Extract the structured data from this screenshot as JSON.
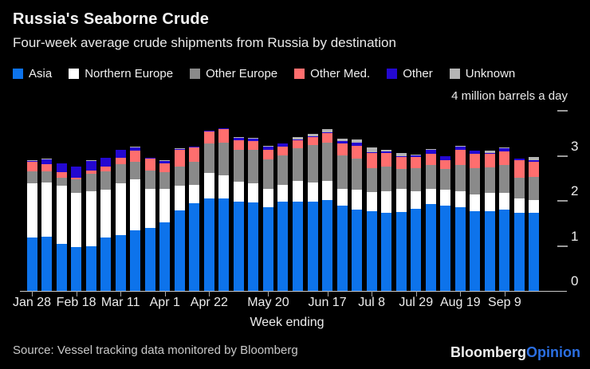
{
  "header": {
    "title": "Russia's Seaborne Crude",
    "subtitle": "Four-week average crude shipments from Russia by destination"
  },
  "footer": {
    "source": "Source: Vessel tracking data monitored by Bloomberg",
    "logo_part1": "Bloomberg",
    "logo_part2": "Opinion"
  },
  "chart_data": {
    "type": "bar",
    "stacked": true,
    "title": "Russia's Seaborne Crude",
    "subtitle": "Four-week average crude shipments from Russia by destination",
    "unit_label": "4 million barrels a day",
    "xlabel": "Week ending",
    "ylabel": "million barrels a day",
    "ylim": [
      0,
      4
    ],
    "grid": false,
    "legend_position": "top",
    "y_ticks": [
      {
        "value": 4,
        "label": ""
      },
      {
        "value": 3,
        "label": "3"
      },
      {
        "value": 2,
        "label": "2"
      },
      {
        "value": 1,
        "label": "1"
      },
      {
        "value": 0,
        "label": "0"
      }
    ],
    "categories": [
      "Jan 28",
      "Feb 4",
      "Feb 11",
      "Feb 18",
      "Feb 25",
      "Mar 4",
      "Mar 11",
      "Mar 18",
      "Mar 25",
      "Apr 1",
      "Apr 8",
      "Apr 15",
      "Apr 22",
      "Apr 29",
      "May 6",
      "May 13",
      "May 20",
      "May 27",
      "Jun 3",
      "Jun 10",
      "Jun 17",
      "Jun 24",
      "Jul 1",
      "Jul 8",
      "Jul 15",
      "Jul 22",
      "Jul 29",
      "Aug 5",
      "Aug 12",
      "Aug 19",
      "Aug 26",
      "Sep 2",
      "Sep 9",
      "Sep 16",
      "Sep 23"
    ],
    "x_tick_labels": [
      {
        "label": "Jan 28",
        "index": 0
      },
      {
        "label": "Feb 18",
        "index": 3
      },
      {
        "label": "Mar 11",
        "index": 6
      },
      {
        "label": "Apr 1",
        "index": 9
      },
      {
        "label": "Apr 22",
        "index": 12
      },
      {
        "label": "May 20",
        "index": 16
      },
      {
        "label": "Jun 17",
        "index": 20
      },
      {
        "label": "Jul 8",
        "index": 23
      },
      {
        "label": "Jul 29",
        "index": 26
      },
      {
        "label": "Aug 19",
        "index": 29
      },
      {
        "label": "Sep 9",
        "index": 32
      }
    ],
    "series": [
      {
        "name": "Asia",
        "color": "#0d73eb",
        "values": [
          1.18,
          1.2,
          1.04,
          0.97,
          1.0,
          1.18,
          1.24,
          1.34,
          1.4,
          1.53,
          1.79,
          1.95,
          2.05,
          2.05,
          1.98,
          1.96,
          1.86,
          1.98,
          1.99,
          1.98,
          2.02,
          1.9,
          1.8,
          1.77,
          1.73,
          1.75,
          1.83,
          1.93,
          1.9,
          1.85,
          1.77,
          1.77,
          1.81,
          1.74,
          1.73
        ]
      },
      {
        "name": "Northern Europe",
        "color": "#ffffff",
        "values": [
          1.21,
          1.2,
          1.3,
          1.21,
          1.21,
          1.06,
          1.15,
          1.13,
          0.87,
          0.73,
          0.55,
          0.41,
          0.57,
          0.52,
          0.44,
          0.43,
          0.4,
          0.38,
          0.45,
          0.42,
          0.43,
          0.36,
          0.44,
          0.43,
          0.49,
          0.51,
          0.38,
          0.33,
          0.34,
          0.37,
          0.37,
          0.41,
          0.36,
          0.32,
          0.28
        ]
      },
      {
        "name": "Other Europe",
        "color": "#8a8a8a",
        "values": [
          0.26,
          0.25,
          0.17,
          0.3,
          0.4,
          0.41,
          0.43,
          0.39,
          0.41,
          0.38,
          0.43,
          0.51,
          0.65,
          0.72,
          0.71,
          0.74,
          0.66,
          0.65,
          0.73,
          0.84,
          0.84,
          0.75,
          0.69,
          0.53,
          0.54,
          0.45,
          0.52,
          0.53,
          0.46,
          0.57,
          0.59,
          0.56,
          0.62,
          0.46,
          0.53
        ]
      },
      {
        "name": "Other Med.",
        "color": "#ff6e6e",
        "values": [
          0.21,
          0.16,
          0.13,
          0.04,
          0.07,
          0.12,
          0.13,
          0.25,
          0.25,
          0.19,
          0.37,
          0.32,
          0.27,
          0.31,
          0.22,
          0.2,
          0.22,
          0.19,
          0.18,
          0.18,
          0.22,
          0.26,
          0.3,
          0.34,
          0.31,
          0.27,
          0.25,
          0.26,
          0.21,
          0.34,
          0.32,
          0.31,
          0.31,
          0.39,
          0.33
        ]
      },
      {
        "name": "Other",
        "color": "#2408d1",
        "values": [
          0.02,
          0.11,
          0.19,
          0.24,
          0.21,
          0.18,
          0.18,
          0.08,
          0.02,
          0.06,
          0.01,
          0.01,
          0.01,
          0.01,
          0.05,
          0.06,
          0.07,
          0.07,
          0.01,
          0.01,
          0.01,
          0.06,
          0.06,
          0.01,
          0.02,
          0.01,
          0.03,
          0.09,
          0.08,
          0.08,
          0.06,
          0.01,
          0.07,
          0.02,
          0.04
        ]
      },
      {
        "name": "Unknown",
        "color": "#b5b5b5",
        "values": [
          0.02,
          0.02,
          0.01,
          0.01,
          0.01,
          0.01,
          0.01,
          0.01,
          0.01,
          0.01,
          0.01,
          0.01,
          0.01,
          0.01,
          0.01,
          0.01,
          0.01,
          0.01,
          0.05,
          0.06,
          0.07,
          0.06,
          0.07,
          0.1,
          0.05,
          0.07,
          0.01,
          0.01,
          0.01,
          0.01,
          0.01,
          0.06,
          0.01,
          0.01,
          0.07
        ]
      }
    ]
  }
}
